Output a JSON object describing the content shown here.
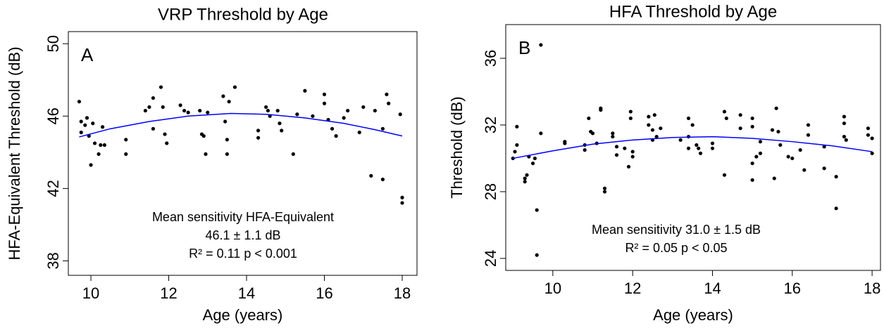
{
  "chart_data": [
    {
      "type": "scatter",
      "title": "VRP Threshold by Age",
      "panel_label": "A",
      "x_label": "Age (years)",
      "y_label": "HFA-Equivalent Threshold (dB)",
      "annotations": [
        "Mean sensitivity HFA-Equivalent",
        "46.1 ±  1.1 dB",
        "R² = 0.11 p < 0.001"
      ],
      "xlim": [
        9.42,
        18.38
      ],
      "ylim": [
        37.2,
        50.67
      ],
      "xticks": [
        10,
        12,
        14,
        16,
        18
      ],
      "yticks": [
        38,
        42,
        46,
        50
      ],
      "series": [
        {
          "type": "scatter",
          "color": "#000000",
          "x": [
            9.7,
            9.75,
            9.75,
            9.85,
            9.9,
            9.95,
            10.0,
            10.05,
            10.1,
            10.2,
            10.25,
            10.3,
            10.35,
            10.9,
            10.9,
            11.4,
            11.5,
            11.6,
            11.6,
            11.8,
            11.85,
            11.9,
            11.95,
            12.3,
            12.4,
            12.5,
            12.8,
            12.85,
            12.9,
            12.95,
            13.0,
            13.4,
            13.45,
            13.5,
            13.5,
            13.55,
            13.7,
            14.3,
            14.3,
            14.5,
            14.55,
            14.6,
            14.8,
            14.85,
            14.9,
            15.2,
            15.3,
            15.5,
            15.7,
            16.0,
            16.0,
            16.1,
            16.2,
            16.3,
            16.5,
            16.6,
            16.9,
            17.0,
            17.2,
            17.3,
            17.5,
            17.5,
            17.6,
            17.65,
            17.95,
            18.0,
            18.0
          ],
          "values": [
            46.8,
            45.7,
            45.1,
            45.5,
            45.9,
            44.9,
            43.3,
            45.6,
            44.5,
            43.9,
            44.4,
            45.4,
            44.4,
            44.7,
            43.9,
            46.3,
            46.5,
            47.0,
            45.3,
            47.6,
            46.5,
            45.0,
            44.5,
            46.6,
            46.3,
            46.2,
            46.3,
            45.0,
            44.9,
            43.9,
            46.2,
            47.1,
            45.7,
            44.7,
            43.9,
            46.8,
            47.6,
            45.2,
            44.8,
            46.5,
            46.3,
            46.0,
            46.3,
            45.6,
            45.2,
            43.9,
            46.1,
            47.4,
            46.0,
            47.2,
            46.7,
            45.8,
            45.3,
            44.9,
            45.9,
            46.3,
            45.1,
            46.5,
            42.7,
            46.3,
            45.3,
            42.5,
            47.2,
            46.7,
            46.1,
            41.5,
            41.2
          ]
        },
        {
          "type": "line",
          "color": "#0000ff",
          "x": [
            9.7,
            10.5,
            11.5,
            12.5,
            13.6,
            14.5,
            15.5,
            16.5,
            17.3,
            18.0
          ],
          "values": [
            44.85,
            45.3,
            45.7,
            46.0,
            46.15,
            46.1,
            45.9,
            45.6,
            45.25,
            44.9
          ]
        }
      ]
    },
    {
      "type": "scatter",
      "title": "HFA Threshold by Age",
      "panel_label": "B",
      "x_label": "Age (years)",
      "y_label": "Threshold (dB)",
      "annotations": [
        "Mean sensitivity 31.0 ±  1.5 dB",
        "R² = 0.05 p < 0.05"
      ],
      "xlim": [
        8.82,
        18.21
      ],
      "ylim": [
        23.28,
        38.02
      ],
      "xticks": [
        10,
        12,
        14,
        16,
        18
      ],
      "yticks": [
        24,
        28,
        32,
        36
      ],
      "series": [
        {
          "type": "scatter",
          "color": "#000000",
          "x": [
            9.0,
            9.05,
            9.1,
            9.1,
            9.3,
            9.3,
            9.35,
            9.4,
            9.5,
            9.55,
            9.6,
            9.6,
            9.7,
            9.7,
            10.3,
            10.3,
            10.8,
            10.8,
            10.9,
            10.95,
            11.0,
            11.1,
            11.2,
            11.2,
            11.3,
            11.3,
            11.5,
            11.5,
            11.6,
            11.6,
            11.8,
            11.9,
            11.95,
            11.95,
            12.0,
            12.0,
            12.4,
            12.4,
            12.5,
            12.5,
            12.55,
            12.6,
            12.7,
            13.2,
            13.4,
            13.4,
            13.4,
            13.5,
            13.6,
            13.65,
            13.7,
            14.0,
            14.0,
            14.3,
            14.35,
            14.3,
            14.7,
            14.7,
            15.0,
            15.0,
            15.0,
            15.0,
            15.1,
            15.2,
            15.2,
            15.5,
            15.55,
            15.6,
            15.65,
            15.7,
            15.9,
            16.0,
            16.2,
            16.3,
            16.4,
            16.4,
            16.8,
            16.8,
            17.1,
            17.1,
            17.3,
            17.3,
            17.3,
            17.35,
            17.9,
            17.9,
            18.0,
            18.0
          ],
          "values": [
            30.0,
            30.4,
            31.9,
            30.8,
            28.6,
            28.8,
            29.0,
            30.1,
            29.7,
            30.0,
            26.9,
            24.2,
            36.8,
            31.5,
            31.0,
            30.9,
            30.8,
            30.5,
            32.4,
            31.6,
            31.5,
            30.9,
            33.0,
            32.9,
            28.2,
            28.0,
            31.5,
            31.3,
            30.7,
            30.2,
            30.6,
            29.5,
            32.8,
            32.4,
            30.4,
            30.1,
            32.5,
            32.0,
            31.7,
            31.1,
            32.6,
            31.3,
            31.8,
            31.1,
            32.4,
            31.3,
            30.6,
            32.0,
            30.8,
            30.6,
            30.3,
            30.9,
            30.6,
            32.8,
            32.4,
            29.0,
            32.6,
            31.8,
            32.4,
            31.9,
            29.7,
            28.7,
            30.1,
            31.0,
            30.3,
            31.7,
            28.8,
            33.0,
            31.6,
            30.8,
            30.1,
            30.0,
            30.5,
            29.3,
            32.0,
            31.4,
            29.4,
            30.7,
            27.0,
            28.9,
            32.5,
            32.1,
            31.3,
            31.1,
            31.8,
            31.4,
            30.3,
            31.2
          ]
        },
        {
          "type": "line",
          "color": "#0000ff",
          "x": [
            9.0,
            10.0,
            11.0,
            12.0,
            13.0,
            14.0,
            15.0,
            16.0,
            17.0,
            18.0
          ],
          "values": [
            30.0,
            30.45,
            30.85,
            31.1,
            31.25,
            31.3,
            31.2,
            31.0,
            30.75,
            30.4
          ]
        }
      ]
    }
  ]
}
